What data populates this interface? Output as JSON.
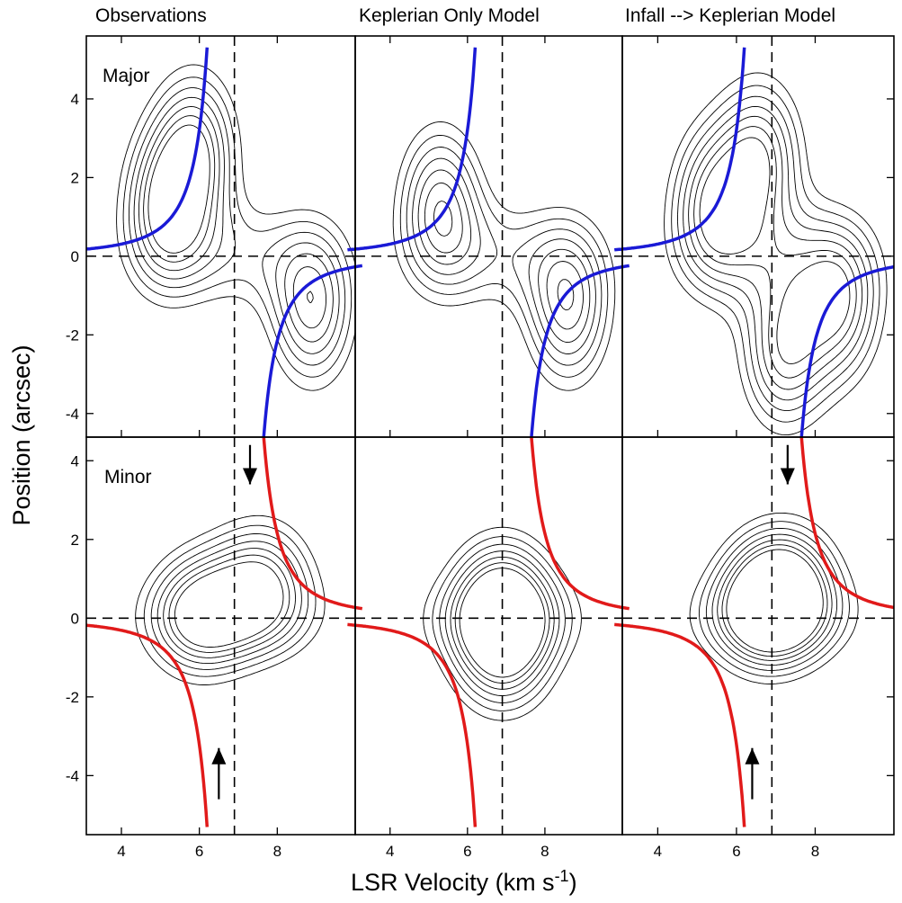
{
  "figure": {
    "column_titles": [
      "Observations",
      "Keplerian Only Model",
      "Infall --> Keplerian Model"
    ],
    "row_labels": [
      "Major",
      "Minor"
    ],
    "xlabel_main": "LSR Velocity (km s",
    "xlabel_sup": "-1",
    "xlabel_end": ")",
    "ylabel": "Position (arcsec)"
  },
  "chart_data": {
    "type": "contour",
    "layout": "2 rows x 3 columns",
    "xlabel": "LSR Velocity (km s-1)",
    "ylabel": "Position (arcsec)",
    "xlim": [
      3.1,
      10.0
    ],
    "ylim_top_row": [
      -4.6,
      5.6
    ],
    "ylim_bottom_row": [
      -5.5,
      4.6
    ],
    "x_ticks": [
      4,
      6,
      8
    ],
    "y_ticks_top_row": [
      4,
      2,
      0,
      -2,
      -4
    ],
    "y_ticks_bottom_row": [
      4,
      2,
      0,
      -2,
      -4
    ],
    "systemic_velocity": 6.9,
    "zero_position": 0,
    "colors": {
      "major_axis_curve": "#1a1ad6",
      "minor_axis_curve": "#e11a1a",
      "contours": "#000000"
    },
    "panels": [
      {
        "row": "Major",
        "column": "Observations",
        "peaks": [
          {
            "v": 5.1,
            "p": 1.2
          },
          {
            "v": 5.9,
            "p": 2.7
          },
          {
            "v": 8.9,
            "p": -1.3
          }
        ],
        "arrows": []
      },
      {
        "row": "Major",
        "column": "Keplerian Only Model",
        "peaks": [
          {
            "v": 5.3,
            "p": 1.3
          },
          {
            "v": 8.6,
            "p": -1.3
          }
        ],
        "arrows": []
      },
      {
        "row": "Major",
        "column": "Infall --> Keplerian Model",
        "peaks": [
          {
            "v": 5.4,
            "p": 1.3
          },
          {
            "v": 6.6,
            "p": 2.5
          },
          {
            "v": 7.2,
            "p": -2.4
          },
          {
            "v": 8.6,
            "p": -1.2
          }
        ],
        "arrows": []
      },
      {
        "row": "Minor",
        "column": "Observations",
        "peaks": [
          {
            "v": 6.0,
            "p": 0.1
          },
          {
            "v": 7.6,
            "p": 0.9
          }
        ],
        "arrows": [
          {
            "v": 7.3,
            "from": 4.4,
            "to": 3.4
          },
          {
            "v": 6.5,
            "from": -4.6,
            "to": -3.3
          }
        ]
      },
      {
        "row": "Minor",
        "column": "Keplerian Only Model",
        "peaks": [
          {
            "v": 6.9,
            "p": 0.6
          },
          {
            "v": 6.9,
            "p": -0.9
          }
        ],
        "arrows": []
      },
      {
        "row": "Minor",
        "column": "Infall --> Keplerian Model",
        "peaks": [
          {
            "v": 6.7,
            "p": 0.3
          },
          {
            "v": 7.3,
            "p": 0.8
          }
        ],
        "arrows": [
          {
            "v": 7.3,
            "from": 4.4,
            "to": 3.4
          },
          {
            "v": 6.4,
            "from": -4.6,
            "to": -3.3
          }
        ]
      }
    ]
  }
}
